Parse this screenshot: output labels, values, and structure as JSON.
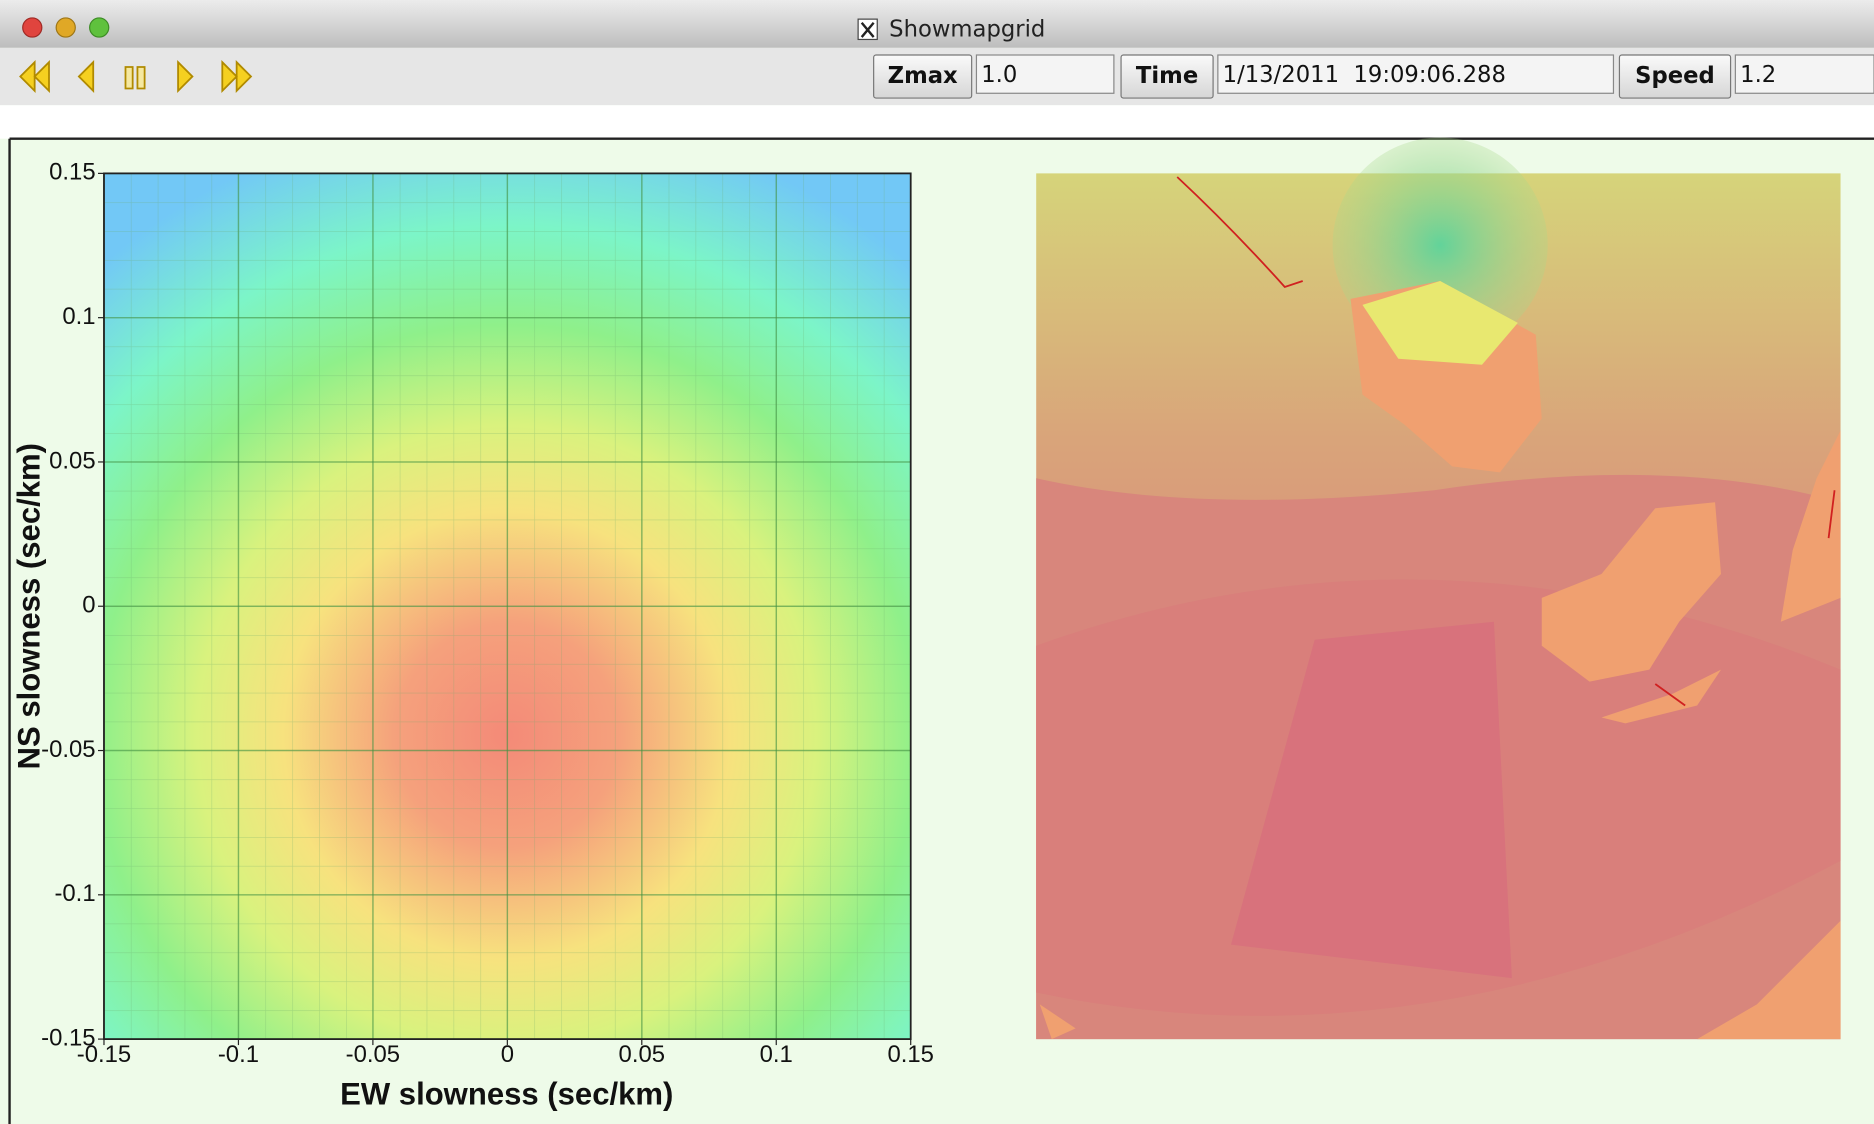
{
  "window": {
    "title": "Showmapgrid"
  },
  "toolbar": {
    "fields": [
      {
        "button": "Zmax",
        "value": "1.0"
      },
      {
        "button": "Time",
        "value": "1/13/2011  19:09:06.288"
      },
      {
        "button": "Speed",
        "value": "1.2"
      }
    ]
  },
  "chart_data": {
    "type": "heatmap",
    "xlabel": "EW slowness (sec/km)",
    "ylabel": "NS slowness (sec/km)",
    "xlim": [
      -0.15,
      0.15
    ],
    "ylim": [
      -0.15,
      0.15
    ],
    "xticks": [
      -0.15,
      -0.1,
      -0.05,
      0,
      0.05,
      0.1,
      0.15
    ],
    "yticks": [
      -0.15,
      -0.1,
      -0.05,
      0,
      0.05,
      0.1,
      0.15
    ],
    "grid": true
  }
}
